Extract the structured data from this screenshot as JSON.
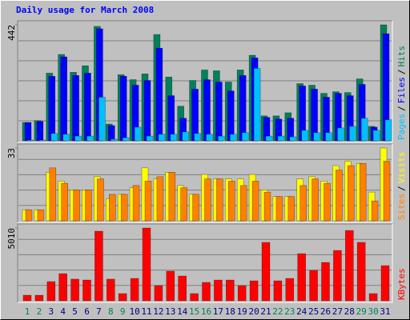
{
  "chart_data": {
    "type": "bar",
    "title": "Daily usage for March 2008",
    "categories": [
      "1",
      "2",
      "3",
      "4",
      "5",
      "6",
      "7",
      "8",
      "9",
      "10",
      "11",
      "12",
      "13",
      "14",
      "15",
      "16",
      "17",
      "18",
      "19",
      "20",
      "21",
      "22",
      "23",
      "24",
      "25",
      "26",
      "27",
      "28",
      "29",
      "30",
      "31"
    ],
    "category_colors": [
      "#00805c",
      "#00805c",
      "#000080",
      "#000080",
      "#000080",
      "#000080",
      "#000080",
      "#00805c",
      "#00805c",
      "#000080",
      "#000080",
      "#000080",
      "#000080",
      "#000080",
      "#00805c",
      "#00805c",
      "#000080",
      "#000080",
      "#000080",
      "#000080",
      "#000080",
      "#00805c",
      "#00805c",
      "#000080",
      "#000080",
      "#000080",
      "#000080",
      "#000080",
      "#00805c",
      "#00805c",
      "#000080"
    ],
    "legend_separator": "/",
    "panels": [
      {
        "ylim": [
          0,
          442
        ],
        "yticks": [
          442
        ],
        "grid_divisions": 6,
        "series": [
          {
            "name": "Hits",
            "color": "#00805c",
            "values": [
              70,
              77,
              258,
              329,
              261,
              286,
              436,
              64,
              252,
              233,
              255,
              405,
              243,
              132,
              230,
              270,
              267,
              224,
              270,
              326,
              95,
              95,
              107,
              218,
              212,
              181,
              187,
              184,
              236,
              55,
              442
            ]
          },
          {
            "name": "Files",
            "color": "#0000ff",
            "values": [
              70,
              74,
              246,
              320,
              249,
              258,
              427,
              58,
              246,
              212,
              230,
              353,
              172,
              86,
              197,
              233,
              224,
              190,
              249,
              316,
              89,
              83,
              86,
              209,
              197,
              166,
              181,
              172,
              215,
              52,
              408
            ]
          },
          {
            "name": "Pages",
            "color": "#00c0ff",
            "values": [
              3,
              3,
              28,
              25,
              18,
              18,
              166,
              6,
              12,
              52,
              18,
              25,
              25,
              34,
              28,
              25,
              18,
              25,
              31,
              276,
              18,
              18,
              15,
              40,
              31,
              31,
              49,
              55,
              86,
              40,
              80
            ]
          }
        ]
      },
      {
        "ylim": [
          0,
          33
        ],
        "yticks": [
          33
        ],
        "grid_divisions": 5,
        "series": [
          {
            "name": "Visits",
            "color": "#ffff00",
            "values": [
              5,
              5,
              22,
              18,
              14,
              14,
              20,
              10,
              12,
              15,
              24,
              19,
              22,
              16,
              12,
              21,
              19,
              19,
              19,
              21,
              14,
              11,
              11,
              19,
              20,
              18,
              25,
              27,
              26,
              13,
              33
            ]
          },
          {
            "name": "Sites",
            "color": "#ff8000",
            "values": [
              5,
              5,
              24,
              17,
              14,
              14,
              19,
              12,
              12,
              16,
              18,
              20,
              22,
              15,
              12,
              19,
              19,
              18,
              16,
              18,
              13,
              11,
              11,
              16,
              19,
              17,
              23,
              25,
              26,
              9,
              27
            ]
          }
        ]
      },
      {
        "ylim": [
          0,
          5010
        ],
        "yticks": [
          5010
        ],
        "grid_divisions": 5,
        "series": [
          {
            "name": "KBytes",
            "color": "#ff0000",
            "values": [
              385,
              385,
              1320,
              1870,
              1490,
              1430,
              4790,
              1490,
              495,
              1540,
              5010,
              1045,
              2040,
              1705,
              495,
              1265,
              1430,
              1430,
              1045,
              1375,
              4020,
              1375,
              1540,
              3245,
              2090,
              2640,
              3465,
              4840,
              4020,
              495,
              2420
            ]
          }
        ]
      }
    ]
  }
}
